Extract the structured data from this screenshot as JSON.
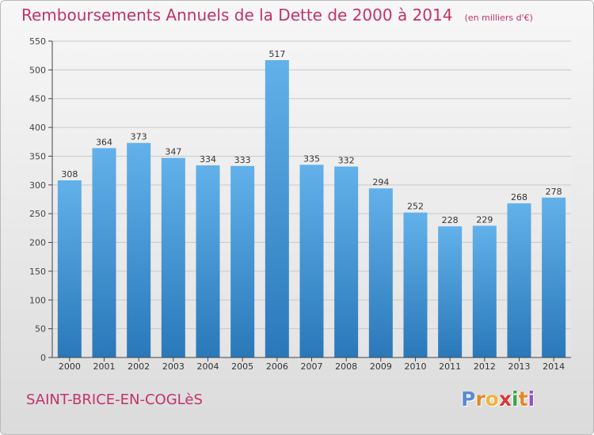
{
  "header": {
    "title": "Remboursements Annuels de la Dette de 2000 à 2014",
    "unit": "(en milliers d'€)"
  },
  "footer": {
    "commune": "SAINT-BRICE-EN-COGLèS",
    "logo_letters": [
      "P",
      "r",
      "o",
      "x",
      "i",
      "t",
      "i"
    ]
  },
  "colors": {
    "title": "#c2326c",
    "bar_top": "#62b1ea",
    "bar_bottom": "#2a78b9",
    "logo": [
      "#5b8bd0",
      "#e0892a",
      "#f0b43a",
      "#d83a3a",
      "#3aa54a",
      "#e0892a",
      "#9b4fc0"
    ]
  },
  "chart_data": {
    "type": "bar",
    "title": "Remboursements Annuels de la Dette de 2000 à 2014",
    "subtitle": "(en milliers d'€)",
    "xlabel": "",
    "ylabel": "",
    "categories": [
      "2000",
      "2001",
      "2002",
      "2003",
      "2004",
      "2005",
      "2006",
      "2007",
      "2008",
      "2009",
      "2010",
      "2011",
      "2012",
      "2013",
      "2014"
    ],
    "values": [
      308,
      364,
      373,
      347,
      334,
      333,
      517,
      335,
      332,
      294,
      252,
      228,
      229,
      268,
      278
    ],
    "ylim": [
      0,
      550
    ],
    "yticks": [
      0,
      50,
      100,
      150,
      200,
      250,
      300,
      350,
      400,
      450,
      500,
      550
    ],
    "grid": true,
    "data_labels": true
  }
}
